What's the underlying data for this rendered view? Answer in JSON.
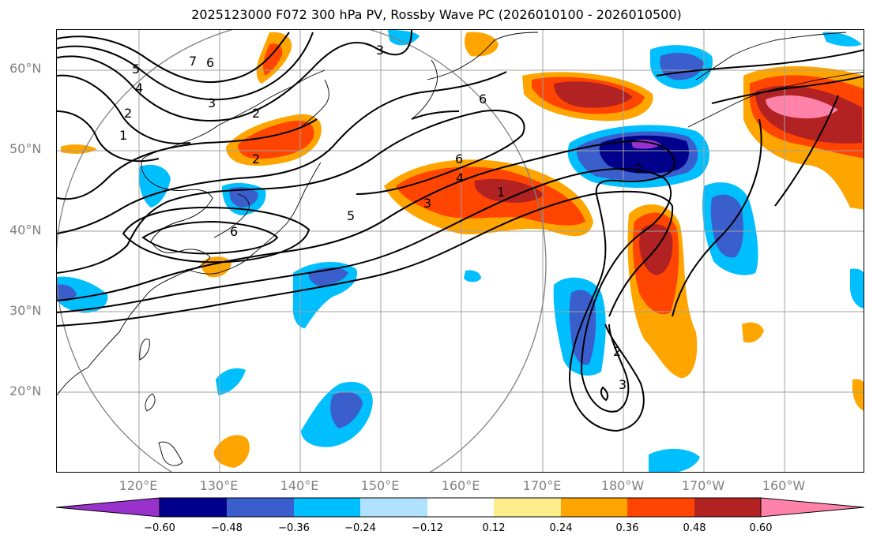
{
  "title": "2025123000 F072 300 hPa PV, Rossby Wave PC (2026010100 - 2026010500)",
  "lat_labels": [
    "60°N",
    "50°N",
    "40°N",
    "30°N",
    "20°N"
  ],
  "lon_labels": [
    "120°E",
    "130°E",
    "140°E",
    "150°E",
    "160°E",
    "170°E",
    "180°W",
    "170°W",
    "160°W"
  ],
  "colorbar": {
    "tick_labels": [
      "−0.60",
      "−0.48",
      "−0.36",
      "−0.24",
      "−0.12",
      "0.12",
      "0.24",
      "0.36",
      "0.48",
      "0.60"
    ],
    "colors": [
      "#9932cc",
      "#00008b",
      "#3a5fcd",
      "#00bfff",
      "#b0e2ff",
      "#ffffff",
      "#ffec8b",
      "#ffa500",
      "#ff4500",
      "#b22222",
      "#ff82ab"
    ],
    "extend": "both"
  },
  "contour_labels": [
    "7",
    "6",
    "5",
    "4",
    "3",
    "2",
    "1",
    "3",
    "2",
    "2",
    "6",
    "6",
    "4",
    "3",
    "1",
    "5",
    "6",
    "2",
    "2",
    "3"
  ],
  "map_extent": {
    "lon_min": "110°E",
    "lon_max": "150°W",
    "lat_min": "10°N",
    "lat_max": "65°N"
  }
}
